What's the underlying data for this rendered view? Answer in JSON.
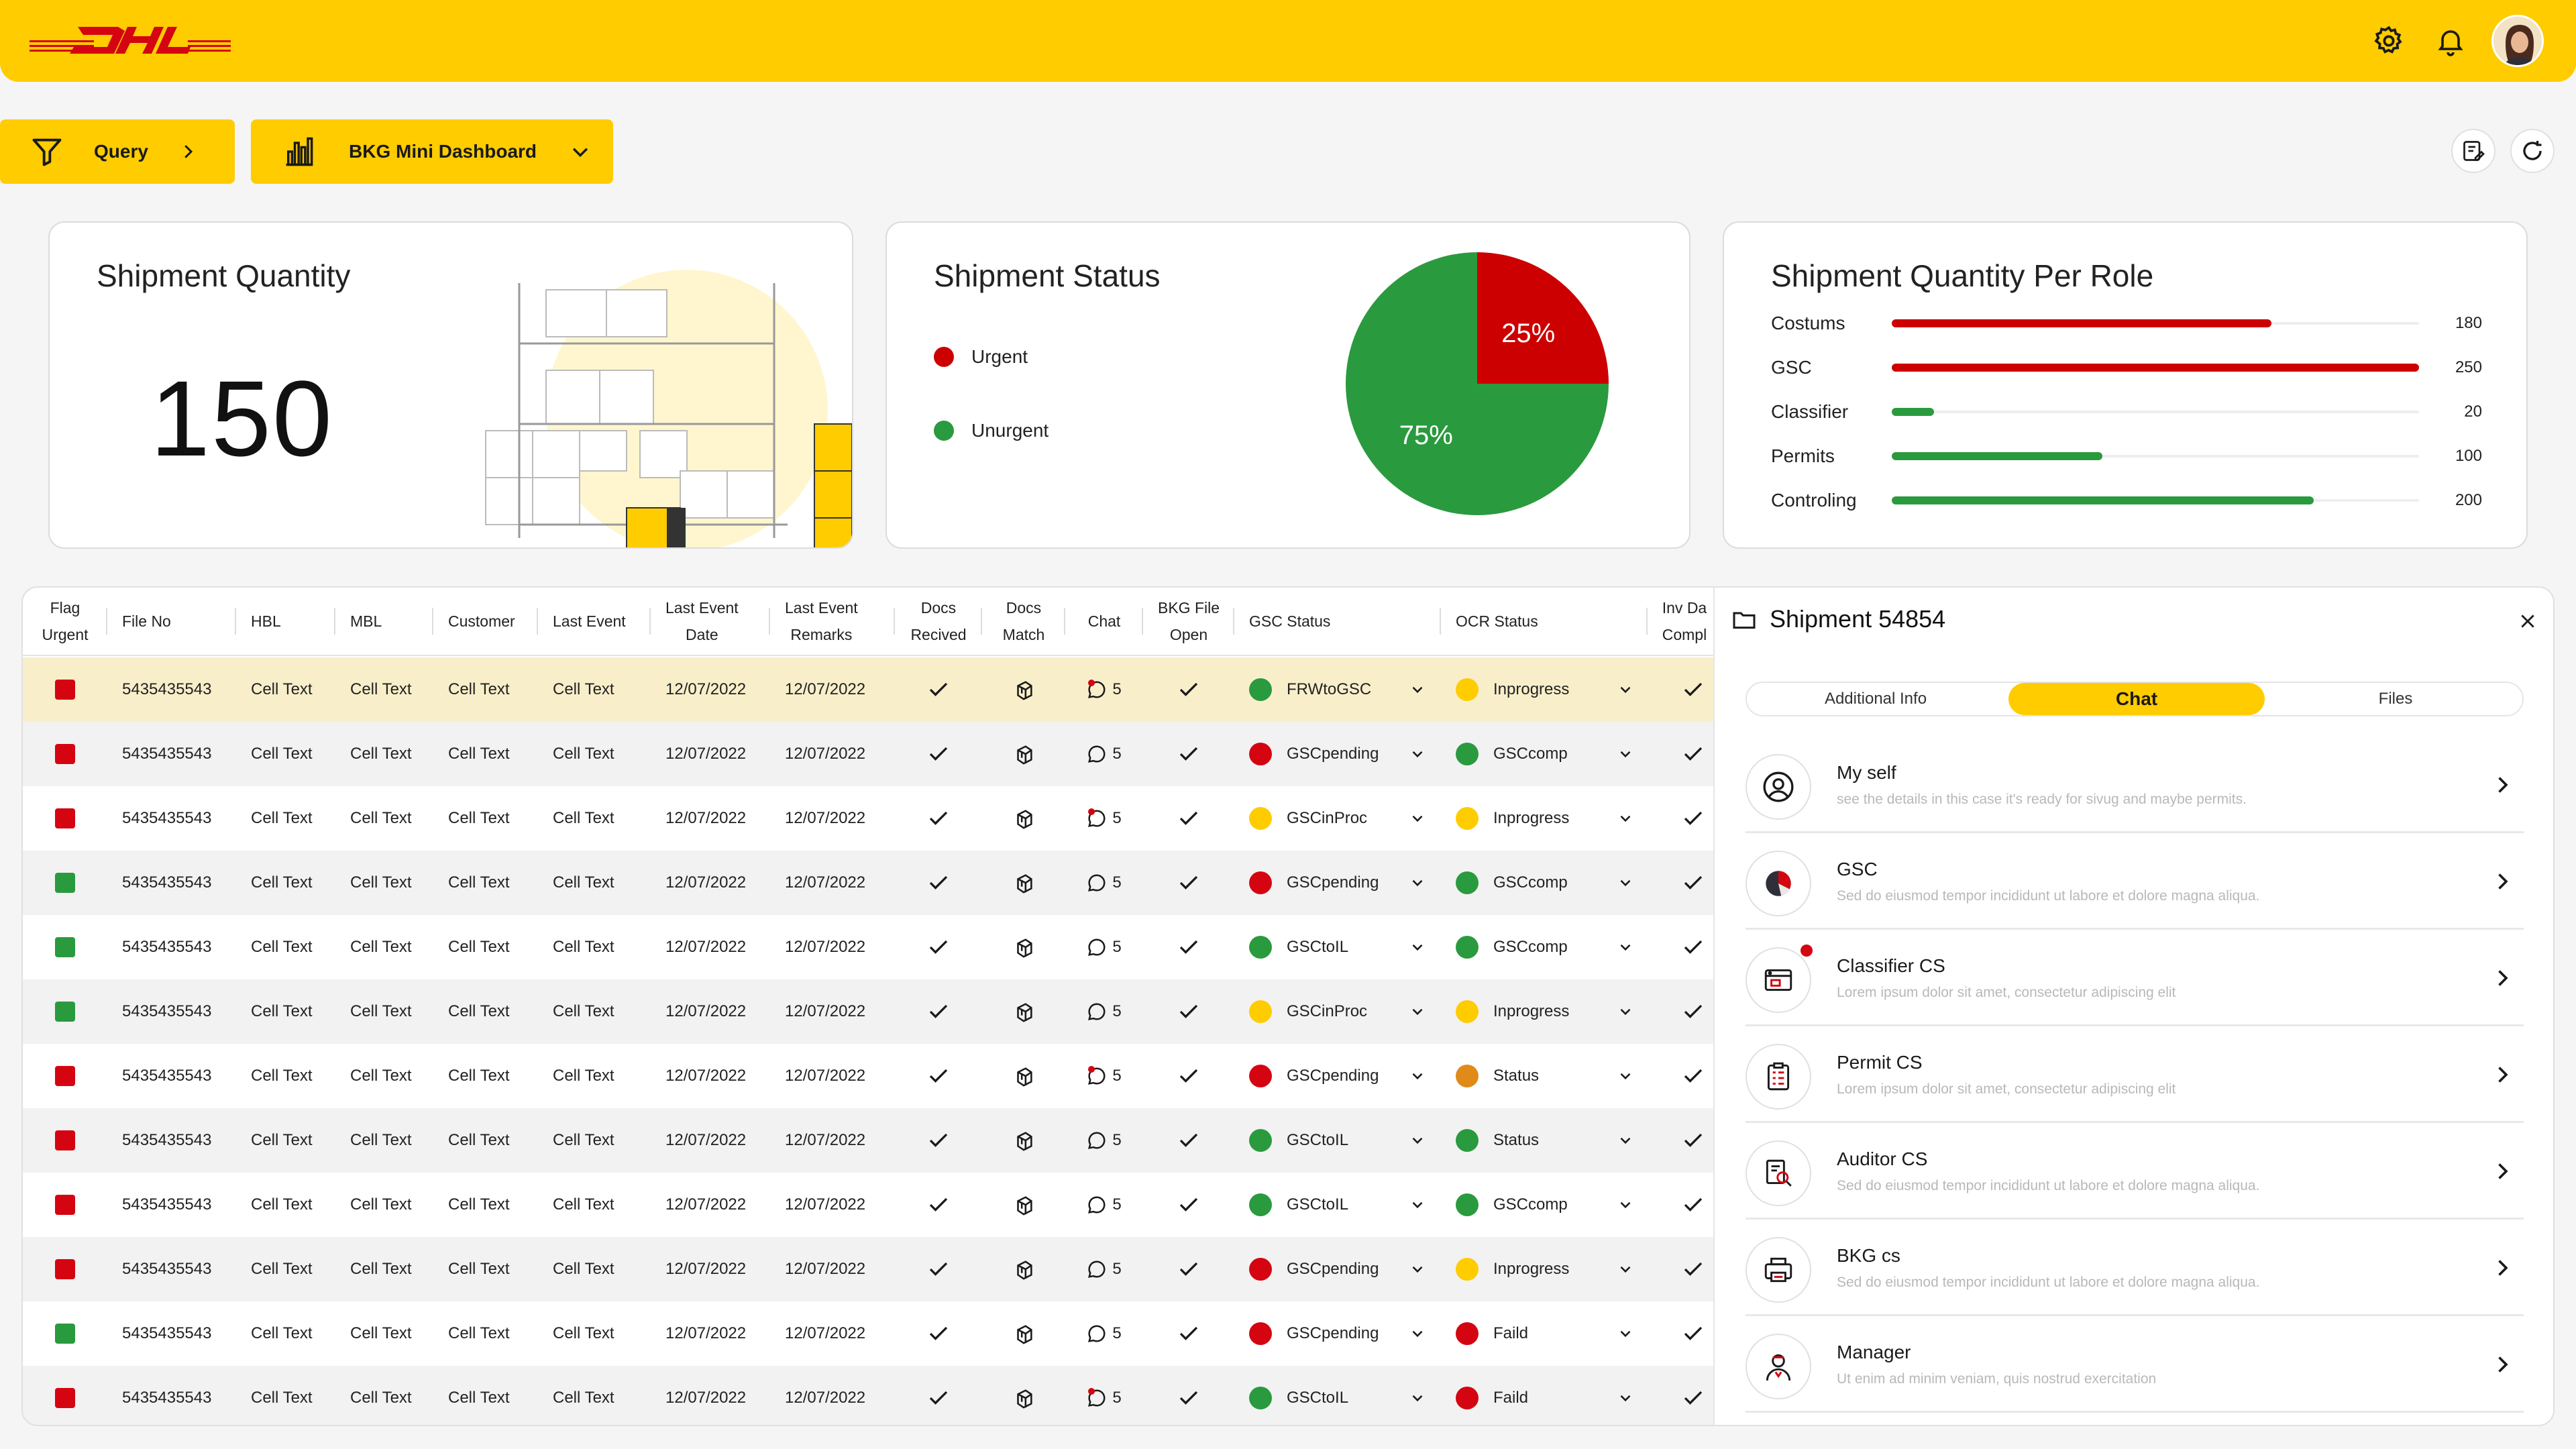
{
  "colors": {
    "accent": "#ffcc00",
    "red": "#d40511",
    "green": "#2a9a3e",
    "yellow": "#ffcc00",
    "orange": "#e08a1a"
  },
  "toolbar": {
    "query_label": "Query",
    "dashboard_label": "BKG Mini Dashboard"
  },
  "cards": {
    "quantity": {
      "title": "Shipment Quantity",
      "value": "150"
    },
    "status": {
      "title": "Shipment Status",
      "legend": [
        {
          "label": "Urgent",
          "color": "#cc0000"
        },
        {
          "label": "Unurgent",
          "color": "#2a9a3e"
        }
      ],
      "chart_data": {
        "type": "pie",
        "labels": [
          "Urgent",
          "Unurgent"
        ],
        "values": [
          25,
          75
        ],
        "slice_labels": [
          "25%",
          "75%"
        ]
      }
    },
    "roles": {
      "title": "Shipment Quantity Per Role",
      "chart_data": {
        "type": "bar",
        "categories": [
          "Costums",
          "GSC",
          "Classifier",
          "Permits",
          "Controling"
        ],
        "values": [
          180,
          250,
          20,
          100,
          200
        ],
        "value_labels": [
          "180",
          "250",
          "20",
          "100",
          "200"
        ],
        "colors": [
          "#cc0000",
          "#cc0000",
          "#2a9a3e",
          "#2a9a3e",
          "#2a9a3e"
        ],
        "xlim": [
          0,
          250
        ]
      }
    }
  },
  "table": {
    "headers": {
      "flag": [
        "Flag",
        "Urgent"
      ],
      "file_no": "File No",
      "hbl": "HBL",
      "mbl": "MBL",
      "customer": "Customer",
      "last_event": "Last Event",
      "last_event_date": [
        "Last Event",
        "Date"
      ],
      "last_event_remarks": [
        "Last Event",
        "Remarks"
      ],
      "docs_received": [
        "Docs",
        "Recived"
      ],
      "docs_match": [
        "Docs",
        "Match"
      ],
      "chat": "Chat",
      "bkg_file_open": [
        "BKG File",
        "Open"
      ],
      "gsc_status": "GSC Status",
      "ocr_status": "OCR Status",
      "inv_data": [
        "Inv Da",
        "Compl"
      ]
    },
    "rows": [
      {
        "flag": "red",
        "file_no": "5435435543",
        "hbl": "Cell Text",
        "mbl": "Cell Text",
        "customer": "Cell Text",
        "last_event": "Cell Text",
        "date": "12/07/2022",
        "remarks": "12/07/2022",
        "chat": "5",
        "chat_unread": true,
        "gsc": "FRWtoGSC",
        "gsc_color": "green",
        "ocr": "Inprogress",
        "ocr_color": "yellow",
        "selected": true
      },
      {
        "flag": "red",
        "file_no": "5435435543",
        "hbl": "Cell Text",
        "mbl": "Cell Text",
        "customer": "Cell Text",
        "last_event": "Cell Text",
        "date": "12/07/2022",
        "remarks": "12/07/2022",
        "chat": "5",
        "chat_unread": false,
        "gsc": "GSCpending",
        "gsc_color": "red",
        "ocr": "GSCcomp",
        "ocr_color": "green"
      },
      {
        "flag": "red",
        "file_no": "5435435543",
        "hbl": "Cell Text",
        "mbl": "Cell Text",
        "customer": "Cell Text",
        "last_event": "Cell Text",
        "date": "12/07/2022",
        "remarks": "12/07/2022",
        "chat": "5",
        "chat_unread": true,
        "gsc": "GSCinProc",
        "gsc_color": "yellow",
        "ocr": "Inprogress",
        "ocr_color": "yellow"
      },
      {
        "flag": "green",
        "file_no": "5435435543",
        "hbl": "Cell Text",
        "mbl": "Cell Text",
        "customer": "Cell Text",
        "last_event": "Cell Text",
        "date": "12/07/2022",
        "remarks": "12/07/2022",
        "chat": "5",
        "chat_unread": false,
        "gsc": "GSCpending",
        "gsc_color": "red",
        "ocr": "GSCcomp",
        "ocr_color": "green"
      },
      {
        "flag": "green",
        "file_no": "5435435543",
        "hbl": "Cell Text",
        "mbl": "Cell Text",
        "customer": "Cell Text",
        "last_event": "Cell Text",
        "date": "12/07/2022",
        "remarks": "12/07/2022",
        "chat": "5",
        "chat_unread": false,
        "gsc": "GSCtoIL",
        "gsc_color": "green",
        "ocr": "GSCcomp",
        "ocr_color": "green"
      },
      {
        "flag": "green",
        "file_no": "5435435543",
        "hbl": "Cell Text",
        "mbl": "Cell Text",
        "customer": "Cell Text",
        "last_event": "Cell Text",
        "date": "12/07/2022",
        "remarks": "12/07/2022",
        "chat": "5",
        "chat_unread": false,
        "gsc": "GSCinProc",
        "gsc_color": "yellow",
        "ocr": "Inprogress",
        "ocr_color": "yellow"
      },
      {
        "flag": "red",
        "file_no": "5435435543",
        "hbl": "Cell Text",
        "mbl": "Cell Text",
        "customer": "Cell Text",
        "last_event": "Cell Text",
        "date": "12/07/2022",
        "remarks": "12/07/2022",
        "chat": "5",
        "chat_unread": true,
        "gsc": "GSCpending",
        "gsc_color": "red",
        "ocr": "Status",
        "ocr_color": "orange"
      },
      {
        "flag": "red",
        "file_no": "5435435543",
        "hbl": "Cell Text",
        "mbl": "Cell Text",
        "customer": "Cell Text",
        "last_event": "Cell Text",
        "date": "12/07/2022",
        "remarks": "12/07/2022",
        "chat": "5",
        "chat_unread": false,
        "gsc": "GSCtoIL",
        "gsc_color": "green",
        "ocr": "Status",
        "ocr_color": "green"
      },
      {
        "flag": "red",
        "file_no": "5435435543",
        "hbl": "Cell Text",
        "mbl": "Cell Text",
        "customer": "Cell Text",
        "last_event": "Cell Text",
        "date": "12/07/2022",
        "remarks": "12/07/2022",
        "chat": "5",
        "chat_unread": false,
        "gsc": "GSCtoIL",
        "gsc_color": "green",
        "ocr": "GSCcomp",
        "ocr_color": "green"
      },
      {
        "flag": "red",
        "file_no": "5435435543",
        "hbl": "Cell Text",
        "mbl": "Cell Text",
        "customer": "Cell Text",
        "last_event": "Cell Text",
        "date": "12/07/2022",
        "remarks": "12/07/2022",
        "chat": "5",
        "chat_unread": false,
        "gsc": "GSCpending",
        "gsc_color": "red",
        "ocr": "Inprogress",
        "ocr_color": "yellow"
      },
      {
        "flag": "green",
        "file_no": "5435435543",
        "hbl": "Cell Text",
        "mbl": "Cell Text",
        "customer": "Cell Text",
        "last_event": "Cell Text",
        "date": "12/07/2022",
        "remarks": "12/07/2022",
        "chat": "5",
        "chat_unread": false,
        "gsc": "GSCpending",
        "gsc_color": "red",
        "ocr": "Faild",
        "ocr_color": "red"
      },
      {
        "flag": "red",
        "file_no": "5435435543",
        "hbl": "Cell Text",
        "mbl": "Cell Text",
        "customer": "Cell Text",
        "last_event": "Cell Text",
        "date": "12/07/2022",
        "remarks": "12/07/2022",
        "chat": "5",
        "chat_unread": true,
        "gsc": "GSCtoIL",
        "gsc_color": "green",
        "ocr": "Faild",
        "ocr_color": "red"
      }
    ]
  },
  "panel": {
    "title": "Shipment 54854",
    "tabs": [
      {
        "label": "Additional Info"
      },
      {
        "label": "Chat",
        "active": true
      },
      {
        "label": "Files"
      }
    ],
    "chats": [
      {
        "name": "My self",
        "message": "see the details in this case it's ready for sivug and maybe permits.",
        "icon": "user-icon"
      },
      {
        "name": "GSC",
        "message": "Sed do eiusmod tempor incididunt ut labore et dolore magna aliqua.",
        "icon": "pie-icon"
      },
      {
        "name": "Classifier CS",
        "message": "Lorem ipsum dolor sit amet, consectetur adipiscing elit",
        "icon": "browser-icon",
        "unread": true
      },
      {
        "name": "Permit CS",
        "message": "Lorem ipsum dolor sit amet, consectetur adipiscing elit",
        "icon": "clipboard-icon"
      },
      {
        "name": "Auditor CS",
        "message": "Sed do eiusmod tempor incididunt ut labore et dolore magna aliqua.",
        "icon": "audit-icon"
      },
      {
        "name": "BKG cs",
        "message": "Sed do eiusmod tempor incididunt ut labore et dolore magna aliqua.",
        "icon": "printer-icon"
      },
      {
        "name": "Manager",
        "message": "Ut enim ad minim veniam, quis nostrud exercitation",
        "icon": "manager-icon"
      }
    ]
  }
}
